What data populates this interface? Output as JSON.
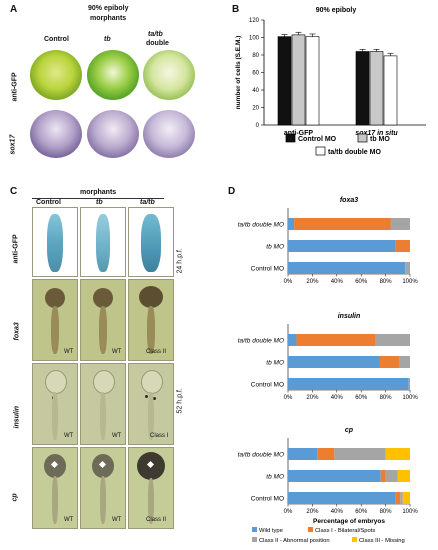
{
  "panelA": {
    "label": "A",
    "title": "90% epiboly",
    "subtitle": "morphants",
    "columns": [
      "Control",
      "tb",
      "ta/tb"
    ],
    "col3_extra": "double",
    "rows": [
      "anti-GFP",
      "sox17"
    ]
  },
  "panelB": {
    "label": "B",
    "title": "90% epiboly",
    "ylabel": "number of cells (S.E.M.)",
    "yticks": [
      "0",
      "20",
      "40",
      "60",
      "80",
      "100",
      "120"
    ],
    "legend": [
      "Control MO",
      "tb MO",
      "ta/tb double MO"
    ],
    "colors": {
      "control": "#111111",
      "tb": "#c8c8c8",
      "double": "#ffffff"
    }
  },
  "panelC": {
    "label": "C",
    "subtitle": "morphants",
    "columns": [
      "Control",
      "tb",
      "ta/tb"
    ],
    "rows": [
      "anti-GFP",
      "foxa3",
      "insulin",
      "cp"
    ],
    "time1": "24 h.p.f.",
    "time2": "52 h.p.f.",
    "foxa3_tags": [
      "WT",
      "WT",
      "Class II"
    ],
    "insulin_tags": [
      "WT",
      "WT",
      "Class I"
    ],
    "cp_tags": [
      "WT",
      "WT",
      "Class II"
    ]
  },
  "panelD": {
    "label": "D",
    "xlabel": "Percentage of embryos",
    "xticks": [
      "0%",
      "20%",
      "40%",
      "60%",
      "80%",
      "100%"
    ],
    "rows": [
      "ta/tb double MO",
      "tb MO",
      "Control MO"
    ],
    "legend": [
      "Wild type",
      "Class I - Bilateral/Spots",
      "Class II - Abnormal position",
      "Class III - Missing"
    ],
    "colors": {
      "wt": "#5b9bd5",
      "c1": "#ed7d31",
      "c2": "#a5a5a5",
      "c3": "#ffc000"
    }
  },
  "chart_data": [
    {
      "type": "bar",
      "title": "90% epiboly",
      "ylabel": "number of cells (S.E.M.)",
      "ylim": [
        0,
        120
      ],
      "categories": [
        "anti-GFP",
        "sox17 in situ"
      ],
      "series": [
        {
          "name": "Control MO",
          "values": [
            101,
            84
          ],
          "errors": [
            2.5,
            2.5
          ]
        },
        {
          "name": "tb MO",
          "values": [
            103,
            84
          ],
          "errors": [
            3,
            2.5
          ]
        },
        {
          "name": "ta/tb double MO",
          "values": [
            101,
            79
          ],
          "errors": [
            3,
            3
          ]
        }
      ],
      "legend": "bottom"
    },
    {
      "type": "bar",
      "orientation": "horizontal",
      "stacked": true,
      "title": "foxa3",
      "categories": [
        "ta/tb double MO",
        "tb MO",
        "Control MO"
      ],
      "series": [
        {
          "name": "Wild type",
          "values": [
            5,
            88,
            96
          ]
        },
        {
          "name": "Class I - Bilateral/Spots",
          "values": [
            79,
            12,
            0
          ]
        },
        {
          "name": "Class II - Abnormal position",
          "values": [
            16,
            0,
            4
          ]
        },
        {
          "name": "Class III - Missing",
          "values": [
            0,
            0,
            0
          ]
        }
      ],
      "xlabel": "Percentage of embryos",
      "xlim": [
        0,
        100
      ]
    },
    {
      "type": "bar",
      "orientation": "horizontal",
      "stacked": true,
      "title": "insulin",
      "categories": [
        "ta/tb double MO",
        "tb MO",
        "Control MO"
      ],
      "series": [
        {
          "name": "Wild type",
          "values": [
            7,
            75,
            99
          ]
        },
        {
          "name": "Class I - Bilateral/Spots",
          "values": [
            65,
            16,
            0
          ]
        },
        {
          "name": "Class II - Abnormal position",
          "values": [
            28,
            9,
            1
          ]
        },
        {
          "name": "Class III - Missing",
          "values": [
            0,
            0,
            0
          ]
        }
      ],
      "xlabel": "Percentage of embryos",
      "xlim": [
        0,
        100
      ]
    },
    {
      "type": "bar",
      "orientation": "horizontal",
      "stacked": true,
      "title": "cp",
      "categories": [
        "ta/tb double MO",
        "tb MO",
        "Control MO"
      ],
      "series": [
        {
          "name": "Wild type",
          "values": [
            24,
            76,
            88
          ]
        },
        {
          "name": "Class I - Bilateral/Spots",
          "values": [
            14,
            4,
            4
          ]
        },
        {
          "name": "Class II - Abnormal position",
          "values": [
            42,
            10,
            2
          ]
        },
        {
          "name": "Class III - Missing",
          "values": [
            20,
            10,
            6
          ]
        }
      ],
      "xlabel": "Percentage of embryos",
      "xlim": [
        0,
        100
      ]
    }
  ]
}
